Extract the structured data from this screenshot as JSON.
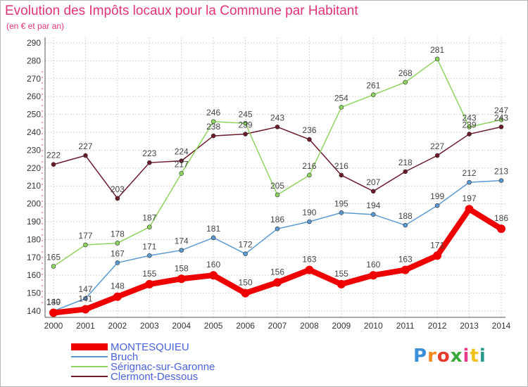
{
  "header": {
    "title": "Evolution des Impôts locaux pour la Commune par Habitant",
    "subtitle": "(en € et par an)"
  },
  "logo": {
    "text": "Proxiti",
    "colors": [
      "#3a8fd8",
      "#f08a1c",
      "#e63a2a",
      "#3aa83a",
      "#e63a8a",
      "#f0c21c",
      "#2a9a8a"
    ]
  },
  "chart_data": {
    "type": "line",
    "categories": [
      "2000",
      "2001",
      "2002",
      "2003",
      "2004",
      "2005",
      "2006",
      "2007",
      "2008",
      "2009",
      "2010",
      "2011",
      "2012",
      "2013",
      "2014"
    ],
    "ylim": [
      140,
      290
    ],
    "yticks": [
      140,
      150,
      160,
      170,
      180,
      190,
      200,
      210,
      220,
      230,
      240,
      250,
      260,
      270,
      280,
      290
    ],
    "grid": true,
    "legend_position": "bottom-left",
    "series": [
      {
        "name": "Clermont-Dessous",
        "color": "#6b1a2a",
        "values": [
          222,
          227,
          203,
          223,
          224,
          238,
          239,
          243,
          236,
          216,
          207,
          218,
          227,
          239,
          243
        ]
      },
      {
        "name": "Sérignac-sur-Garonne",
        "color": "#8ed45e",
        "values": [
          165,
          177,
          178,
          187,
          217,
          246,
          245,
          205,
          216,
          254,
          261,
          268,
          281,
          243,
          247
        ]
      },
      {
        "name": "Bruch",
        "color": "#5a9ad0",
        "values": [
          140,
          147,
          167,
          171,
          174,
          181,
          172,
          186,
          190,
          195,
          194,
          188,
          199,
          212,
          213
        ]
      },
      {
        "name": "MONTESQUIEU",
        "color": "#ee0000",
        "values": [
          139,
          141,
          148,
          155,
          158,
          160,
          150,
          156,
          163,
          155,
          160,
          163,
          171,
          197,
          186
        ]
      }
    ],
    "legend": [
      "MONTESQUIEU",
      "Bruch",
      "Sérignac-sur-Garonne",
      "Clermont-Dessous"
    ]
  }
}
